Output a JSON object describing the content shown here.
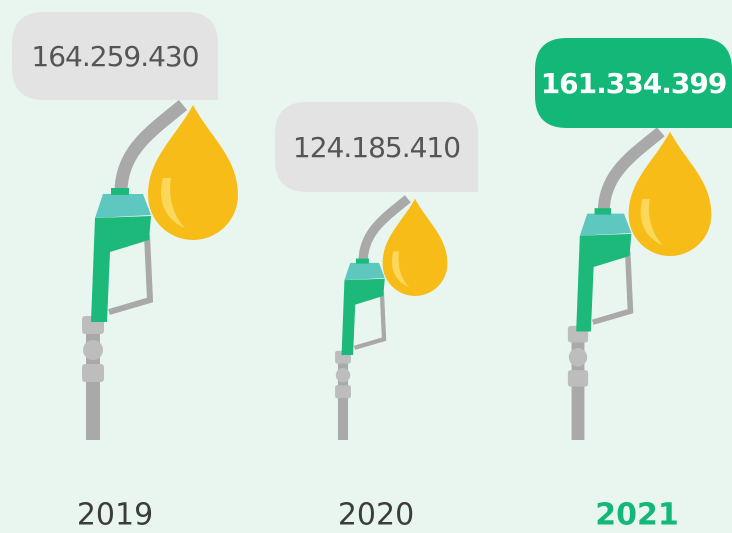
{
  "items": [
    {
      "value": "164.259.430",
      "year": "2019"
    },
    {
      "value": "124.185.410",
      "year": "2020"
    },
    {
      "value": "161.334.399",
      "year": "2021"
    }
  ]
}
